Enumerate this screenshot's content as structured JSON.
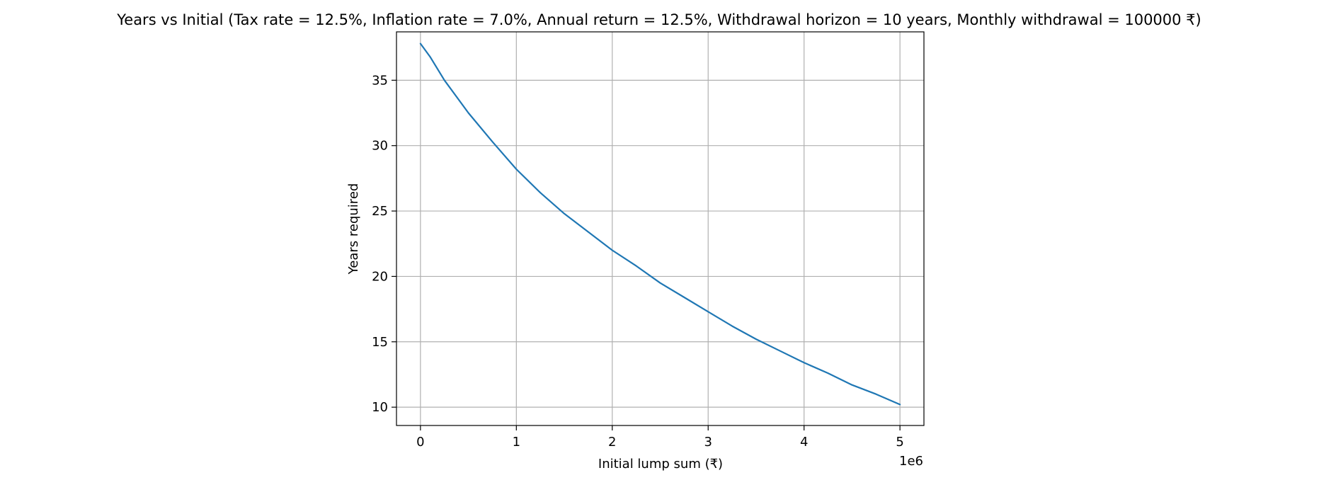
{
  "chart_data": {
    "type": "line",
    "title": "Years vs Initial  (Tax rate = 12.5%, Inflation rate = 7.0%, Annual return = 12.5%, Withdrawal horizon = 10 years, Monthly withdrawal = 100000 ₹)",
    "xlabel": "Initial lump sum (₹)",
    "ylabel": "Years required",
    "x_offset_label": "1e6",
    "xlim": [
      -250000,
      5250000
    ],
    "ylim": [
      8.6,
      38.7
    ],
    "xticks": [
      0,
      1000000,
      2000000,
      3000000,
      4000000,
      5000000
    ],
    "xtick_labels": [
      "0",
      "1",
      "2",
      "3",
      "4",
      "5"
    ],
    "yticks": [
      10,
      15,
      20,
      25,
      30,
      35
    ],
    "ytick_labels": [
      "10",
      "15",
      "20",
      "25",
      "30",
      "35"
    ],
    "grid": true,
    "legend": "none",
    "series": [
      {
        "color": "#1f77b4",
        "x": [
          0,
          100000,
          250000,
          500000,
          750000,
          1000000,
          1250000,
          1500000,
          1750000,
          2000000,
          2250000,
          2500000,
          2750000,
          3000000,
          3250000,
          3500000,
          3750000,
          4000000,
          4250000,
          4500000,
          4750000,
          5000000
        ],
        "y": [
          37.8,
          36.8,
          35.0,
          32.5,
          30.3,
          28.2,
          26.4,
          24.8,
          23.4,
          22.0,
          20.8,
          19.5,
          18.4,
          17.3,
          16.2,
          15.2,
          14.3,
          13.4,
          12.6,
          11.7,
          11.0,
          10.2
        ]
      }
    ]
  }
}
